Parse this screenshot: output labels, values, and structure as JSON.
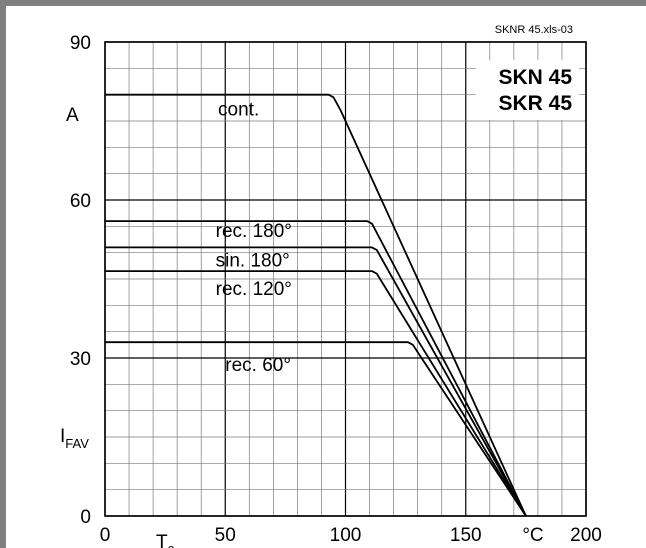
{
  "chart_data": {
    "type": "line",
    "reference": "SKNR 45.xls-03",
    "part_numbers": [
      "SKN 45",
      "SKR 45"
    ],
    "ylabel_unit": "A",
    "ylabel_main": "I",
    "ylabel_sub": "FAV",
    "xlabel_main": "T",
    "xlabel_sub": "c",
    "x_unit": "°C",
    "x_ticks": [
      "0",
      "50",
      "100",
      "150",
      "200"
    ],
    "y_ticks": [
      "0",
      "30",
      "60",
      "90"
    ],
    "xlim": [
      0,
      200
    ],
    "ylim": [
      0,
      90
    ],
    "grid": true,
    "series": [
      {
        "name": "cont.",
        "x": [
          0,
          93,
          95,
          98,
          175
        ],
        "y": [
          80,
          80,
          79.5,
          77,
          0
        ],
        "label_at": [
          47,
          76
        ]
      },
      {
        "name": "rec. 180°",
        "x": [
          0,
          109,
          111,
          175
        ],
        "y": [
          56,
          56,
          55.5,
          0
        ],
        "label_at": [
          46,
          53
        ]
      },
      {
        "name": "sin. 180°",
        "x": [
          0,
          111,
          113,
          175
        ],
        "y": [
          51,
          51,
          50.5,
          0
        ],
        "label_at": [
          46,
          47.4
        ]
      },
      {
        "name": "rec. 120°",
        "x": [
          0,
          111,
          113,
          175
        ],
        "y": [
          46.5,
          46.5,
          46,
          0
        ],
        "label_at": [
          46,
          42
        ]
      },
      {
        "name": "rec. 60°",
        "x": [
          0,
          126,
          128,
          175
        ],
        "y": [
          33,
          33,
          32.5,
          0
        ],
        "label_at": [
          50,
          27.5
        ]
      }
    ]
  }
}
